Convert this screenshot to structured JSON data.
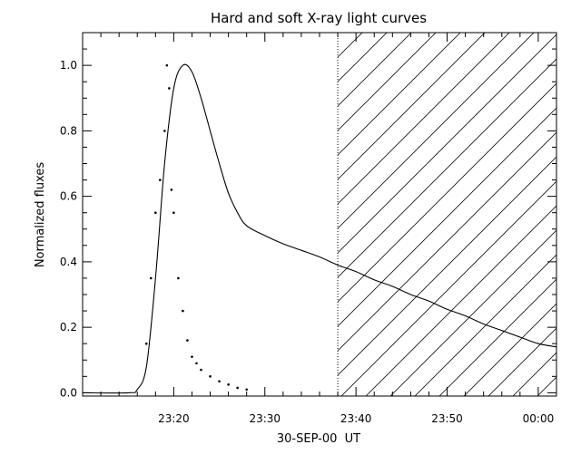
{
  "chart_data": {
    "type": "line",
    "title": "Hard and soft X-ray light curves",
    "xlabel": "30-SEP-00  UT",
    "ylabel": "Normalized fluxes",
    "xlim": [
      "23:10",
      "00:02"
    ],
    "ylim": [
      -0.01,
      1.1
    ],
    "x_ticks": [
      "23:20",
      "23:30",
      "23:40",
      "23:50",
      "00:00"
    ],
    "y_ticks": [
      "0.0",
      "0.2",
      "0.4",
      "0.6",
      "0.8",
      "1.0"
    ],
    "hatched_region": {
      "from": "23:38",
      "to": "00:02",
      "boundary_style": "dotted"
    },
    "series": [
      {
        "style": "solid-line",
        "x": [
          "23:10",
          "23:15",
          "23:16",
          "23:17",
          "23:18",
          "23:19",
          "23:20",
          "23:21",
          "23:22",
          "23:23",
          "23:24",
          "23:25",
          "23:26",
          "23:27",
          "23:28",
          "23:30",
          "23:32",
          "23:34",
          "23:36",
          "23:38",
          "23:40",
          "23:42",
          "23:44",
          "23:46",
          "23:48",
          "23:50",
          "23:52",
          "23:54",
          "23:56",
          "23:58",
          "00:00",
          "00:02"
        ],
        "y": [
          0.0,
          0.0,
          0.01,
          0.08,
          0.35,
          0.7,
          0.93,
          1.0,
          0.98,
          0.9,
          0.8,
          0.7,
          0.61,
          0.55,
          0.51,
          0.48,
          0.455,
          0.435,
          0.415,
          0.39,
          0.37,
          0.345,
          0.325,
          0.3,
          0.28,
          0.255,
          0.235,
          0.21,
          0.19,
          0.17,
          0.15,
          0.14
        ]
      },
      {
        "style": "dots",
        "x": [
          "23:17:00",
          "23:17:30",
          "23:18:00",
          "23:18:30",
          "23:19:00",
          "23:19:15",
          "23:19:30",
          "23:19:45",
          "23:20:00",
          "23:20:30",
          "23:21:00",
          "23:21:30",
          "23:22:00",
          "23:22:30",
          "23:23:00",
          "23:24:00",
          "23:25:00",
          "23:26:00",
          "23:27:00",
          "23:28:00"
        ],
        "y": [
          0.15,
          0.35,
          0.55,
          0.65,
          0.8,
          1.0,
          0.93,
          0.62,
          0.55,
          0.35,
          0.25,
          0.16,
          0.11,
          0.09,
          0.07,
          0.05,
          0.035,
          0.025,
          0.015,
          0.01
        ]
      }
    ]
  }
}
